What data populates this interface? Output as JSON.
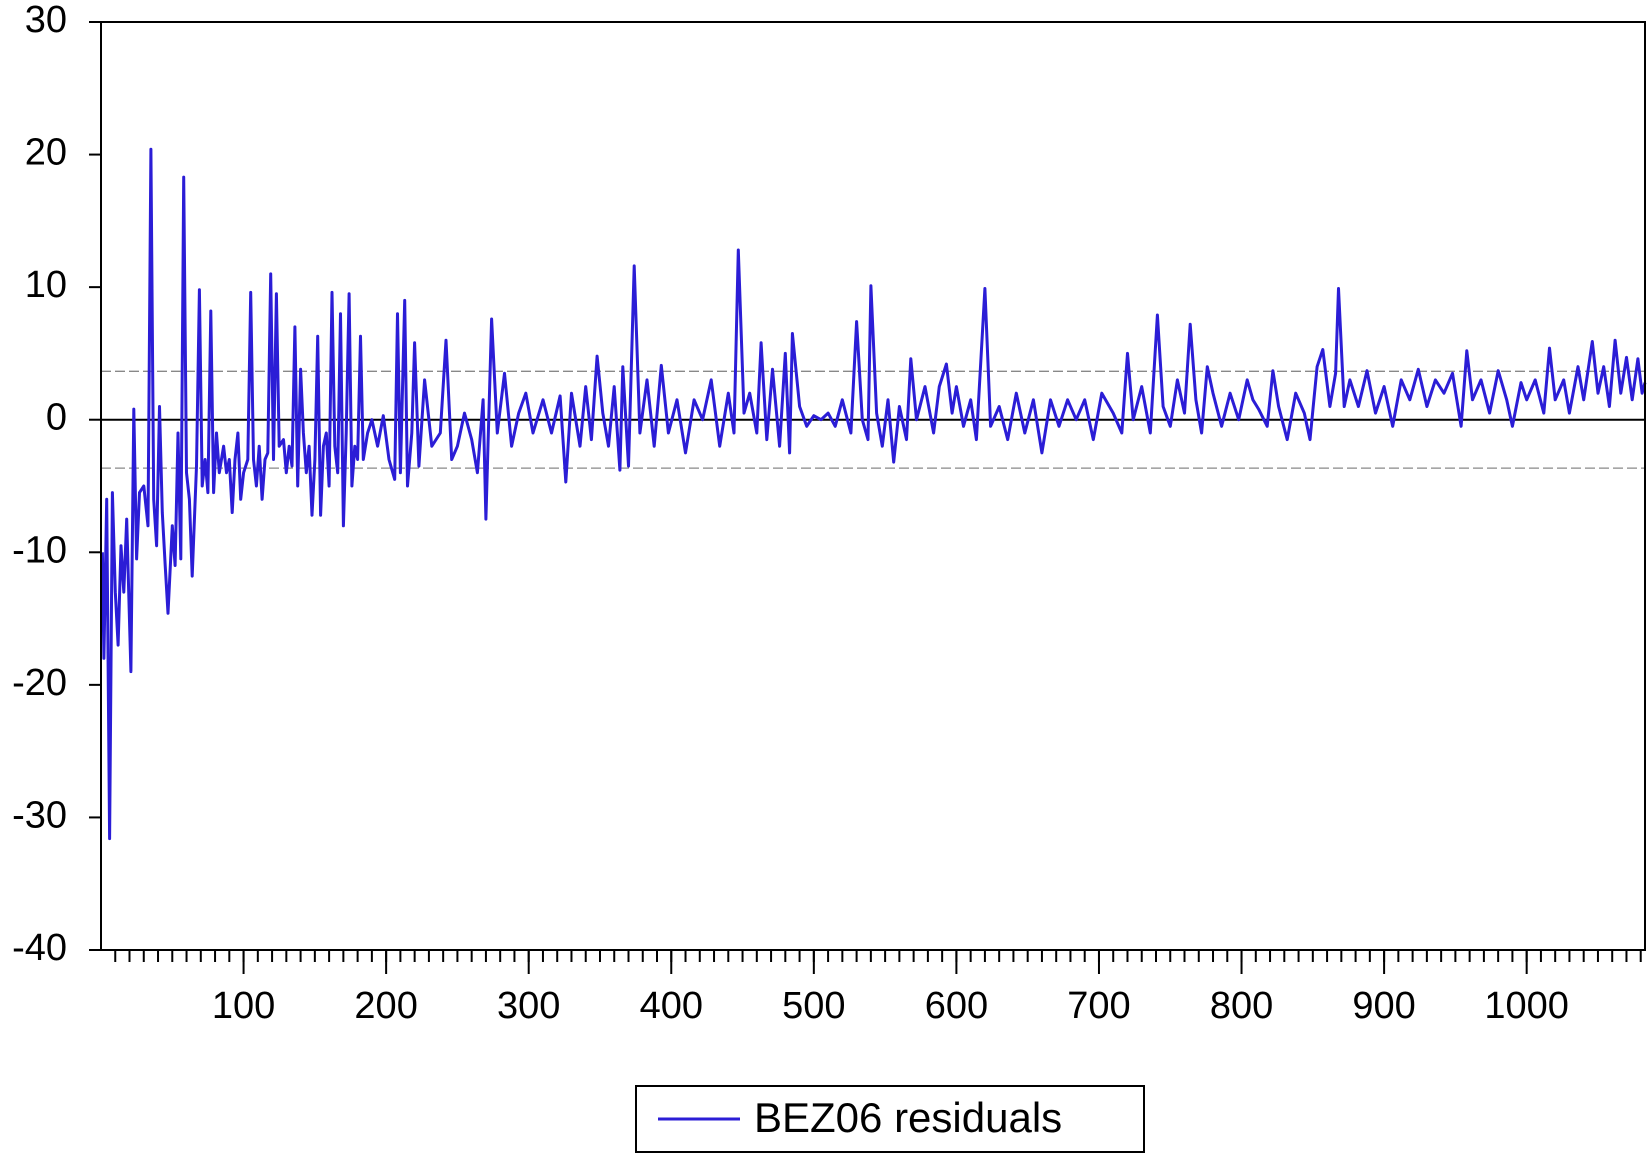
{
  "chart_data": {
    "type": "line",
    "x": [
      1,
      2,
      4,
      6,
      8,
      10,
      12,
      14,
      16,
      18,
      21,
      23,
      25,
      27,
      30,
      33,
      35,
      37,
      39,
      41,
      43,
      45,
      47,
      50,
      52,
      54,
      56,
      58,
      60,
      62,
      64,
      67,
      69,
      71,
      73,
      75,
      77,
      79,
      81,
      83,
      86,
      88,
      90,
      92,
      94,
      96,
      98,
      100,
      103,
      105,
      107,
      109,
      111,
      113,
      115,
      117,
      119,
      121,
      123,
      125,
      128,
      130,
      132,
      134,
      136,
      138,
      140,
      142,
      144,
      146,
      148,
      150,
      152,
      154,
      156,
      158,
      160,
      162,
      164,
      166,
      168,
      170,
      172,
      174,
      176,
      178,
      180,
      182,
      184,
      187,
      190,
      194,
      198,
      202,
      206,
      208,
      210,
      213,
      215,
      218,
      220,
      223,
      227,
      232,
      238,
      242,
      246,
      250,
      255,
      260,
      264,
      268,
      270,
      274,
      278,
      283,
      288,
      293,
      298,
      303,
      310,
      316,
      322,
      326,
      330,
      336,
      340,
      344,
      348,
      352,
      356,
      360,
      364,
      366,
      370,
      374,
      378,
      383,
      388,
      393,
      398,
      404,
      410,
      416,
      422,
      428,
      434,
      440,
      444,
      447,
      451,
      455,
      460,
      463,
      467,
      471,
      476,
      480,
      483,
      485,
      490,
      495,
      500,
      505,
      510,
      515,
      520,
      526,
      530,
      534,
      538,
      540,
      544,
      548,
      552,
      556,
      560,
      565,
      568,
      572,
      578,
      584,
      588,
      593,
      597,
      600,
      605,
      610,
      614,
      620,
      624,
      630,
      636,
      642,
      648,
      654,
      660,
      666,
      672,
      678,
      684,
      690,
      696,
      702,
      710,
      716,
      720,
      724,
      730,
      736,
      741,
      745,
      750,
      755,
      760,
      764,
      768,
      772,
      776,
      780,
      786,
      792,
      798,
      804,
      808,
      812,
      818,
      822,
      826,
      832,
      838,
      844,
      848,
      853,
      857,
      862,
      866,
      868,
      872,
      876,
      882,
      888,
      894,
      900,
      906,
      912,
      918,
      924,
      930,
      936,
      942,
      948,
      954,
      958,
      962,
      968,
      974,
      980,
      986,
      990,
      996,
      1000,
      1006,
      1012,
      1016,
      1020,
      1026,
      1030,
      1036,
      1040,
      1046,
      1050,
      1054,
      1058,
      1062,
      1066,
      1070,
      1074,
      1078,
      1081,
      1083
    ],
    "series": [
      {
        "name": "BEZ06 residuals",
        "color": "#2b1dd6",
        "values": [
          -10,
          -18,
          -6,
          -31.6,
          -5.5,
          -13,
          -17,
          -9.5,
          -13,
          -7.5,
          -19,
          0.8,
          -10.5,
          -5.5,
          -5,
          -8,
          20.4,
          -6,
          -9.5,
          1,
          -7,
          -11,
          -14.6,
          -8,
          -11,
          -1,
          -10.5,
          18.3,
          -4,
          -6,
          -11.8,
          -3.5,
          9.8,
          -5,
          -3,
          -5.5,
          8.2,
          -5.5,
          -1,
          -4,
          -2,
          -4,
          -3,
          -7,
          -3,
          -1,
          -6,
          -4,
          -3,
          9.6,
          -3,
          -5,
          -2,
          -6,
          -3,
          -2.5,
          11,
          -3,
          9.5,
          -2,
          -1.5,
          -4,
          -2,
          -3.5,
          7,
          -5,
          3.8,
          -1,
          -4,
          -2,
          -7.2,
          -3,
          6.3,
          -7.2,
          -2,
          -1,
          -5,
          9.6,
          -2,
          -4,
          8,
          -8,
          -1,
          9.5,
          -5,
          -2,
          -3,
          6.3,
          -3,
          -1,
          0,
          -2,
          0.3,
          -3,
          -4.5,
          8,
          -4,
          9,
          -5,
          -1,
          5.8,
          -3.5,
          3,
          -2,
          -1,
          6,
          -3,
          -2,
          0.5,
          -1.5,
          -4,
          1.5,
          -7.5,
          7.6,
          -1,
          3.5,
          -2,
          0.5,
          2,
          -1,
          1.5,
          -1,
          1.8,
          -4.7,
          2,
          -2,
          2.5,
          -1.5,
          4.8,
          0.5,
          -2,
          2.5,
          -3.8,
          4,
          -3.5,
          11.6,
          -1,
          3,
          -2,
          4.1,
          -1,
          1.5,
          -2.5,
          1.5,
          0,
          3,
          -2,
          2,
          -1,
          12.8,
          0.5,
          2,
          -1,
          5.8,
          -1.5,
          3.8,
          -2,
          5,
          -2.5,
          6.5,
          1,
          -0.5,
          0.3,
          0,
          0.5,
          -0.5,
          1.5,
          -1,
          7.4,
          0,
          -1.5,
          10.1,
          0.5,
          -2,
          1.5,
          -3.2,
          1,
          -1.5,
          4.6,
          0,
          2.5,
          -1,
          2.5,
          4.2,
          0.5,
          2.5,
          -0.5,
          1.5,
          -1.5,
          9.9,
          -0.5,
          1,
          -1.5,
          2,
          -1,
          1.5,
          -2.5,
          1.5,
          -0.5,
          1.5,
          0,
          1.5,
          -1.5,
          2,
          0.5,
          -1,
          5,
          0,
          2.5,
          -1,
          7.9,
          1,
          -0.5,
          3,
          0.5,
          7.2,
          1.5,
          -1,
          4,
          2,
          -0.5,
          2,
          0,
          3,
          1.5,
          0.8,
          -0.5,
          3.7,
          1,
          -1.5,
          2,
          0.5,
          -1.5,
          4,
          5.3,
          1,
          3.5,
          9.9,
          1,
          3,
          1,
          3.7,
          0.5,
          2.5,
          -0.5,
          3,
          1.5,
          3.8,
          1,
          3,
          2,
          3.5,
          -0.5,
          5.2,
          1.5,
          3,
          0.5,
          3.7,
          1.5,
          -0.5,
          2.8,
          1.5,
          3,
          0.5,
          5.4,
          1.5,
          3,
          0.5,
          4,
          1.5,
          5.9,
          2,
          4,
          1,
          6,
          2,
          4.7,
          1.5,
          4.6,
          2,
          2.8
        ]
      }
    ],
    "xlim": [
      0,
      1083
    ],
    "ylim": [
      -40,
      30
    ],
    "xticks": [
      100,
      200,
      300,
      400,
      500,
      600,
      700,
      800,
      900,
      1000
    ],
    "yticks": [
      -40,
      -30,
      -20,
      -10,
      0,
      10,
      20,
      30
    ],
    "x_minor_tick_step": 10,
    "zero_line": 0,
    "band_lines": [
      3.65,
      -3.65
    ],
    "legend": "bottom"
  }
}
